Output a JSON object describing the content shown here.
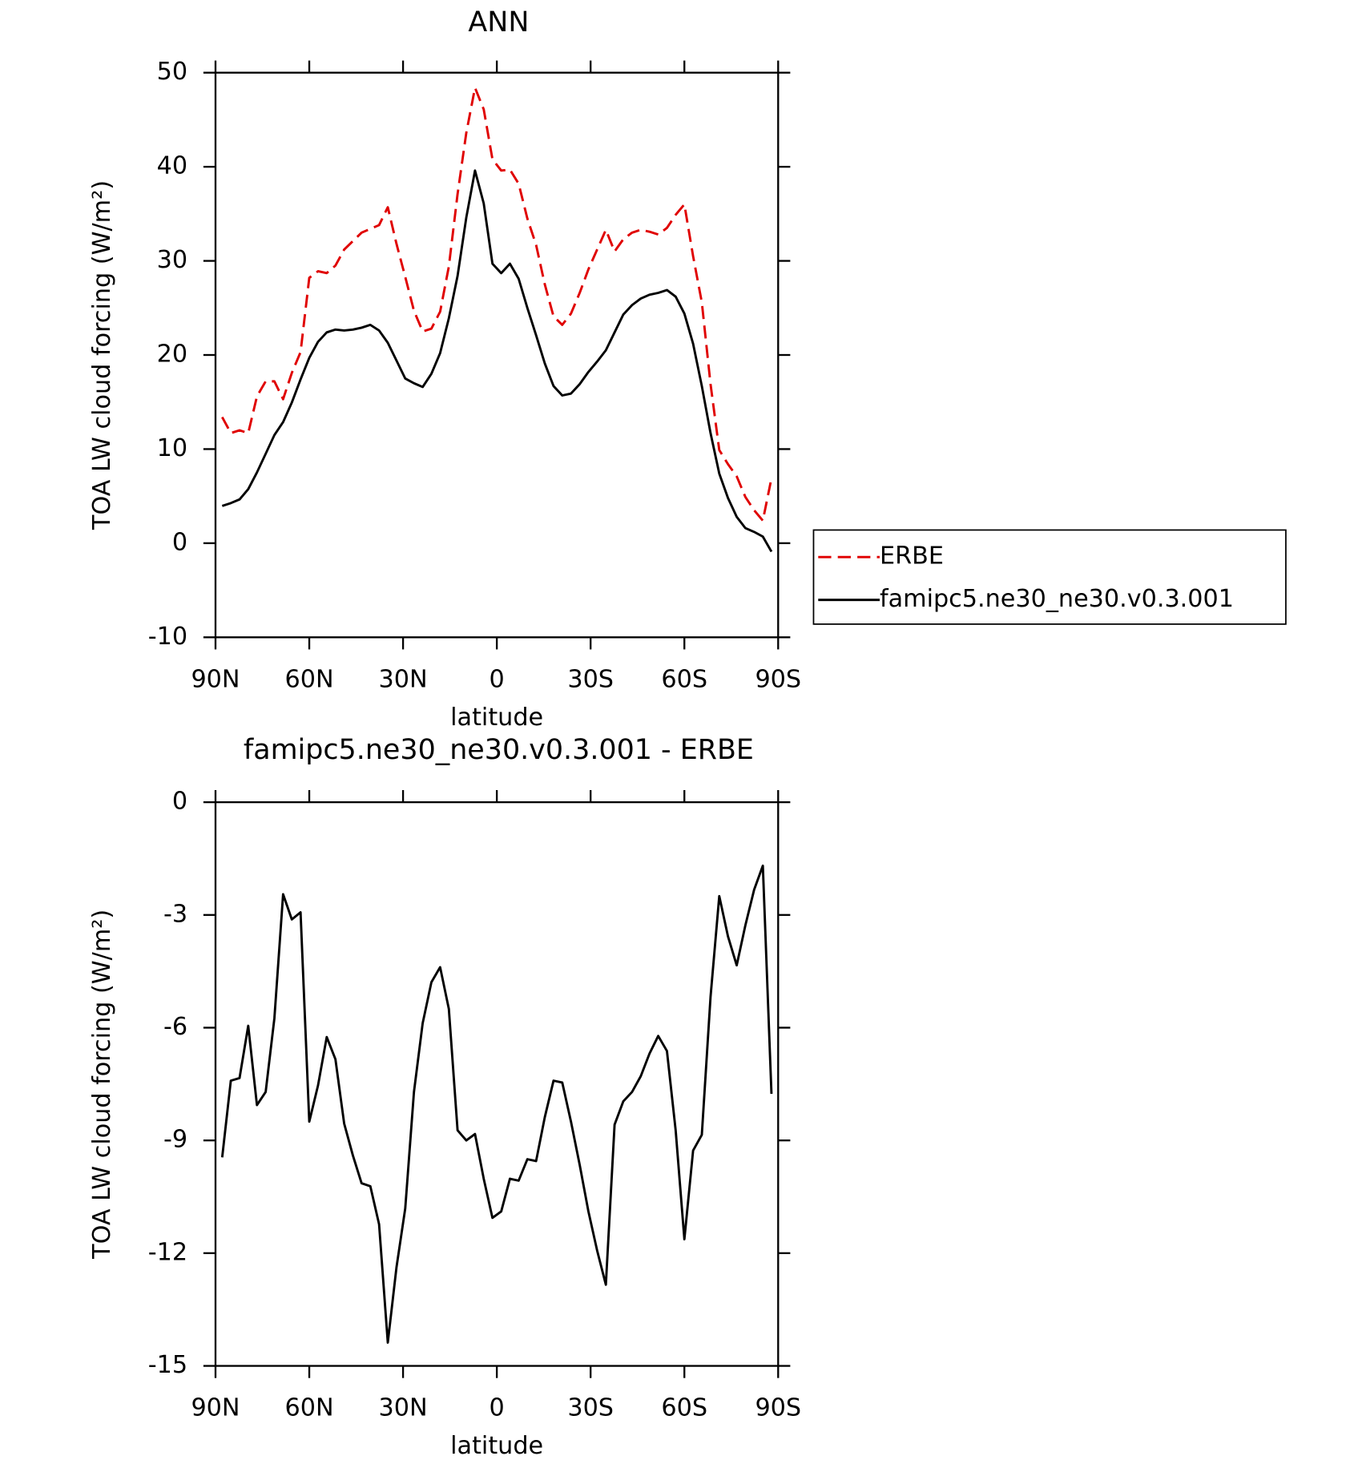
{
  "chart_data": [
    {
      "type": "line",
      "title": "ANN",
      "xlabel": "latitude",
      "ylabel": "TOA LW cloud forcing (W/m²)",
      "x": [
        87.86,
        85.1,
        82.31,
        79.53,
        76.74,
        73.95,
        71.16,
        68.37,
        65.58,
        62.79,
        60.0,
        57.21,
        54.42,
        51.63,
        48.84,
        46.05,
        43.26,
        40.46,
        37.67,
        34.88,
        32.09,
        29.3,
        26.51,
        23.72,
        20.93,
        18.14,
        15.35,
        12.56,
        9.77,
        6.98,
        4.19,
        1.4,
        -1.4,
        -4.19,
        -6.98,
        -9.77,
        -12.56,
        -15.35,
        -18.14,
        -20.93,
        -23.72,
        -26.51,
        -29.3,
        -32.09,
        -34.88,
        -37.67,
        -40.46,
        -43.26,
        -46.05,
        -48.84,
        -51.63,
        -54.42,
        -57.21,
        -60.0,
        -62.79,
        -65.58,
        -68.37,
        -71.16,
        -73.95,
        -76.74,
        -79.53,
        -82.31,
        -85.1,
        -87.86
      ],
      "series": [
        {
          "name": "ERBE",
          "color": "#e00000",
          "dashed": true,
          "values": [
            13.4,
            11.7,
            12.0,
            11.7,
            15.6,
            17.2,
            17.2,
            15.3,
            18.1,
            20.3,
            28.2,
            28.9,
            28.7,
            29.5,
            31.2,
            32.1,
            33.0,
            33.4,
            33.8,
            35.7,
            31.8,
            28.3,
            24.7,
            22.5,
            22.8,
            24.6,
            29.4,
            37.1,
            43.6,
            48.4,
            46.1,
            40.8,
            39.6,
            39.7,
            38.2,
            34.5,
            31.7,
            27.5,
            24.1,
            23.2,
            24.4,
            26.6,
            29.1,
            31.2,
            33.3,
            31.0,
            32.3,
            33.0,
            33.3,
            33.1,
            32.8,
            33.5,
            34.9,
            36.0,
            30.5,
            25.6,
            16.9,
            9.9,
            8.4,
            7.1,
            4.9,
            3.5,
            2.4,
            6.9
          ]
        },
        {
          "name": "famipc5.ne30_ne30.v0.3.001",
          "color": "#000000",
          "dashed": false,
          "values": [
            3.96,
            4.26,
            4.65,
            5.74,
            7.52,
            9.5,
            11.49,
            12.87,
            14.95,
            17.4,
            19.7,
            21.4,
            22.4,
            22.7,
            22.6,
            22.7,
            22.9,
            23.2,
            22.6,
            21.3,
            19.4,
            17.5,
            17.0,
            16.6,
            18.0,
            20.2,
            23.9,
            28.4,
            34.6,
            39.6,
            36.1,
            29.7,
            28.7,
            29.7,
            28.1,
            25.0,
            22.1,
            19.1,
            16.7,
            15.7,
            15.9,
            16.9,
            18.2,
            19.3,
            20.5,
            22.4,
            24.3,
            25.3,
            26.0,
            26.4,
            26.6,
            26.9,
            26.2,
            24.4,
            21.2,
            16.7,
            11.7,
            7.4,
            4.8,
            2.8,
            1.6,
            1.2,
            0.7,
            -0.9
          ]
        }
      ],
      "xlim": [
        90,
        -90
      ],
      "xticks": [
        {
          "value": 90,
          "label": "90N"
        },
        {
          "value": 60,
          "label": "60N"
        },
        {
          "value": 30,
          "label": "30N"
        },
        0,
        {
          "value": -30,
          "label": "30S"
        },
        {
          "value": -60,
          "label": "60S"
        },
        {
          "value": -90,
          "label": "90S"
        }
      ],
      "ylim": [
        -10,
        50
      ],
      "yticks": [
        -10,
        0,
        10,
        20,
        30,
        40,
        50
      ],
      "legend": "right"
    },
    {
      "type": "line",
      "title": "famipc5.ne30_ne30.v0.3.001 - ERBE",
      "xlabel": "latitude",
      "ylabel": "TOA LW cloud forcing (W/m²)",
      "x": [
        87.86,
        85.1,
        82.31,
        79.53,
        76.74,
        73.95,
        71.16,
        68.37,
        65.58,
        62.79,
        60.0,
        57.21,
        54.42,
        51.63,
        48.84,
        46.05,
        43.26,
        40.46,
        37.67,
        34.88,
        32.09,
        29.3,
        26.51,
        23.72,
        20.93,
        18.14,
        15.35,
        12.56,
        9.77,
        6.98,
        4.19,
        1.4,
        -1.4,
        -4.19,
        -6.98,
        -9.77,
        -12.56,
        -15.35,
        -18.14,
        -20.93,
        -23.72,
        -26.51,
        -29.3,
        -32.09,
        -34.88,
        -37.67,
        -40.46,
        -43.26,
        -46.05,
        -48.84,
        -51.63,
        -54.42,
        -57.21,
        -60.0,
        -62.79,
        -65.58,
        -68.37,
        -71.16,
        -73.95,
        -76.74,
        -79.53,
        -82.31,
        -85.1,
        -87.86
      ],
      "values": [
        -9.45,
        -7.41,
        -7.34,
        -5.95,
        -8.06,
        -7.71,
        -5.75,
        -2.45,
        -3.12,
        -2.93,
        -8.5,
        -7.54,
        -6.25,
        -6.84,
        -8.55,
        -9.4,
        -10.14,
        -10.22,
        -11.23,
        -14.38,
        -12.37,
        -10.81,
        -7.71,
        -5.88,
        -4.79,
        -4.39,
        -5.5,
        -8.73,
        -9.0,
        -8.83,
        -10.02,
        -11.06,
        -10.89,
        -10.02,
        -10.07,
        -9.5,
        -9.55,
        -8.38,
        -7.41,
        -7.46,
        -8.5,
        -9.65,
        -10.89,
        -11.93,
        -12.84,
        -8.58,
        -7.96,
        -7.71,
        -7.29,
        -6.69,
        -6.22,
        -6.62,
        -8.73,
        -11.63,
        -9.27,
        -8.85,
        -5.18,
        -2.5,
        -3.57,
        -4.34,
        -3.27,
        -2.33,
        -1.69,
        -7.76
      ],
      "color": "#000000",
      "xlim": [
        90,
        -90
      ],
      "xticks": [
        {
          "value": 90,
          "label": "90N"
        },
        {
          "value": 60,
          "label": "60N"
        },
        {
          "value": 30,
          "label": "30N"
        },
        0,
        {
          "value": -30,
          "label": "30S"
        },
        {
          "value": -60,
          "label": "60S"
        },
        {
          "value": -90,
          "label": "90S"
        }
      ],
      "ylim": [
        -15,
        0
      ],
      "yticks": [
        -15,
        -12,
        -9,
        -6,
        -3,
        0
      ]
    }
  ]
}
